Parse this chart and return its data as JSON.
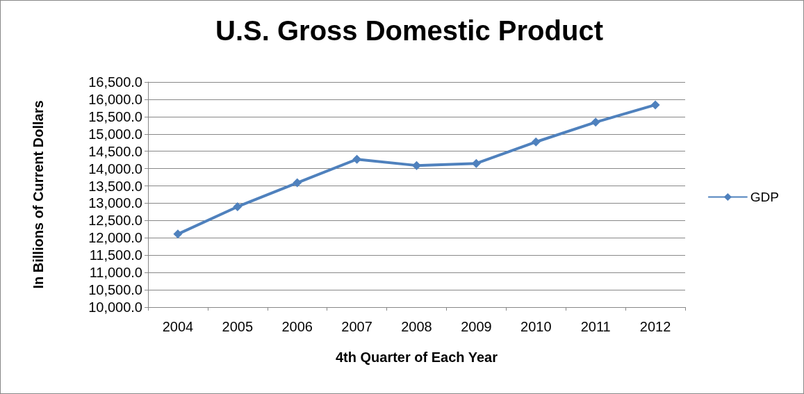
{
  "chart_data": {
    "type": "line",
    "title": "U.S. Gross Domestic Product",
    "xlabel": "4th Quarter of Each Year",
    "ylabel": "In Billions of Current Dollars",
    "categories": [
      "2004",
      "2005",
      "2006",
      "2007",
      "2008",
      "2009",
      "2010",
      "2011",
      "2012"
    ],
    "series": [
      {
        "name": "GDP",
        "color": "#4f81bd",
        "values": [
          12110,
          12900,
          13590,
          14270,
          14090,
          14150,
          14770,
          15340,
          15840
        ]
      }
    ],
    "ylim": [
      10000,
      16500
    ],
    "yticks": [
      {
        "value": 10000,
        "label": "10,000.0"
      },
      {
        "value": 10500,
        "label": "10,500.0"
      },
      {
        "value": 11000,
        "label": "11,000.0"
      },
      {
        "value": 11500,
        "label": "11,500.0"
      },
      {
        "value": 12000,
        "label": "12,000.0"
      },
      {
        "value": 12500,
        "label": "12,500.0"
      },
      {
        "value": 13000,
        "label": "13,000.0"
      },
      {
        "value": 13500,
        "label": "13,500.0"
      },
      {
        "value": 14000,
        "label": "14,000.0"
      },
      {
        "value": 14500,
        "label": "14,500.0"
      },
      {
        "value": 15000,
        "label": "15,000.0"
      },
      {
        "value": 15500,
        "label": "15,500.0"
      },
      {
        "value": 16000,
        "label": "16,000.0"
      },
      {
        "value": 16500,
        "label": "16,500.0"
      }
    ],
    "grid": "y",
    "legend": "right",
    "marker": "diamond",
    "line_style": "solid"
  }
}
